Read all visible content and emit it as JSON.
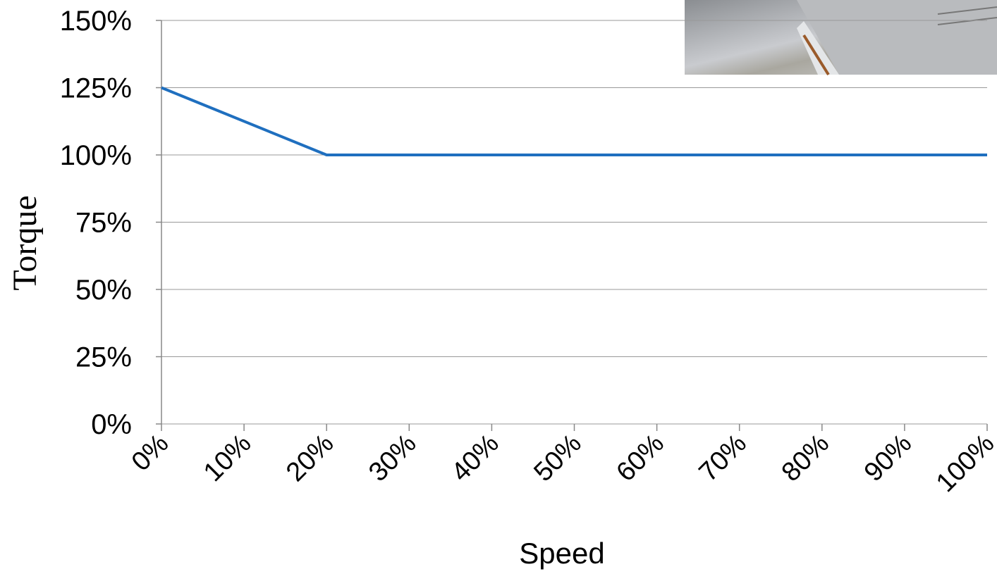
{
  "chart_data": {
    "type": "line",
    "x_label": "Speed",
    "y_label": "Torque",
    "x": [
      0,
      20,
      100
    ],
    "series": [
      {
        "color": "#1f6fbf",
        "values": [
          125,
          100,
          100
        ]
      }
    ],
    "xlim": [
      0,
      100
    ],
    "xticks": [
      {
        "value": 0,
        "label": "0%"
      },
      {
        "value": 10,
        "label": "10%"
      },
      {
        "value": 20,
        "label": "20%"
      },
      {
        "value": 30,
        "label": "30%"
      },
      {
        "value": 40,
        "label": "40%"
      },
      {
        "value": 50,
        "label": "50%"
      },
      {
        "value": 60,
        "label": "60%"
      },
      {
        "value": 70,
        "label": "70%"
      },
      {
        "value": 80,
        "label": "80%"
      },
      {
        "value": 90,
        "label": "90%"
      },
      {
        "value": 100,
        "label": "100%"
      }
    ],
    "ylim": [
      0,
      150
    ],
    "yticks": [
      {
        "value": 0,
        "label": "0%"
      },
      {
        "value": 25,
        "label": "25%"
      },
      {
        "value": 50,
        "label": "50%"
      },
      {
        "value": 75,
        "label": "75%"
      },
      {
        "value": 100,
        "label": "100%"
      },
      {
        "value": 125,
        "label": "125%"
      },
      {
        "value": 150,
        "label": "150%"
      }
    ],
    "grid": true
  }
}
